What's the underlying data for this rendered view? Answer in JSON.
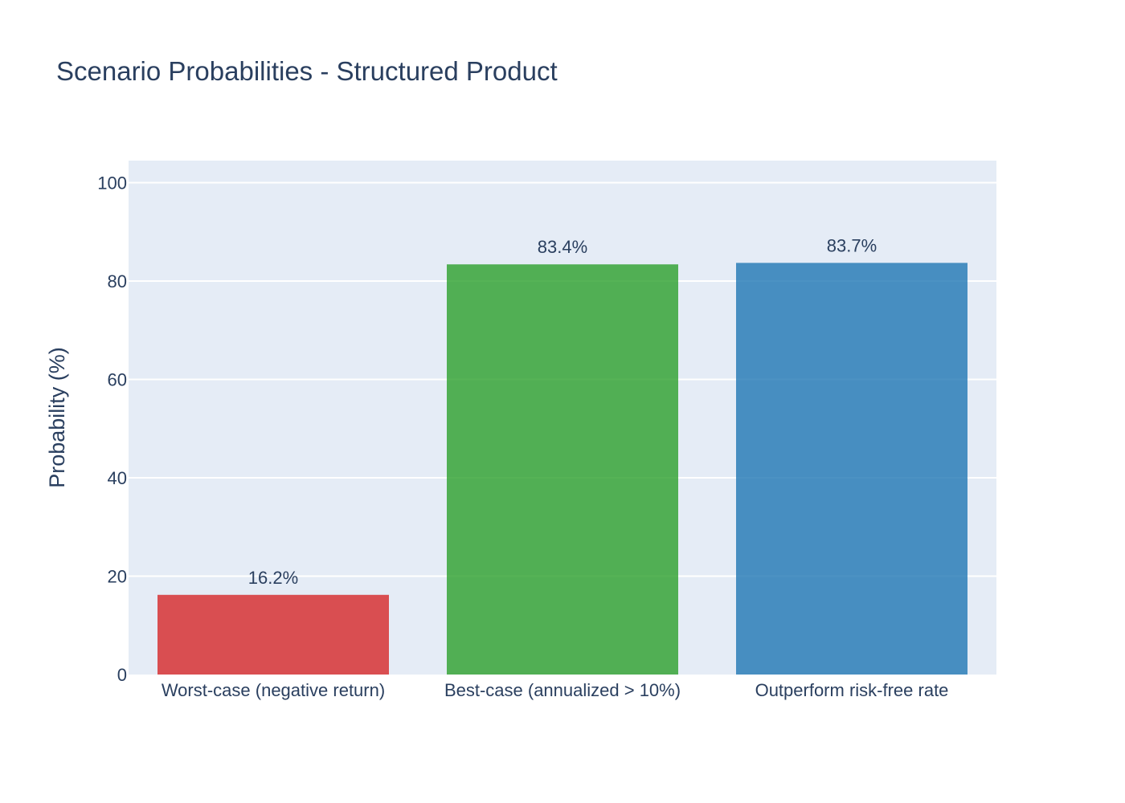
{
  "chart_data": {
    "type": "bar",
    "title": "Scenario Probabilities - Structured Product",
    "xlabel": "",
    "ylabel": "Probability (%)",
    "ylim": [
      0,
      104.5
    ],
    "yticks": [
      0,
      20,
      40,
      60,
      80,
      100
    ],
    "categories": [
      "Worst-case (negative return)",
      "Best-case (annualized > 10%)",
      "Outperform risk-free rate"
    ],
    "values": [
      16.2,
      83.4,
      83.7
    ],
    "data_labels": [
      "16.2%",
      "83.4%",
      "83.7%"
    ],
    "colors": [
      "#d62728",
      "#2ca02c",
      "#1f77b4"
    ],
    "plot_background": "#e5ecf6",
    "grid": true,
    "legend": "none"
  }
}
